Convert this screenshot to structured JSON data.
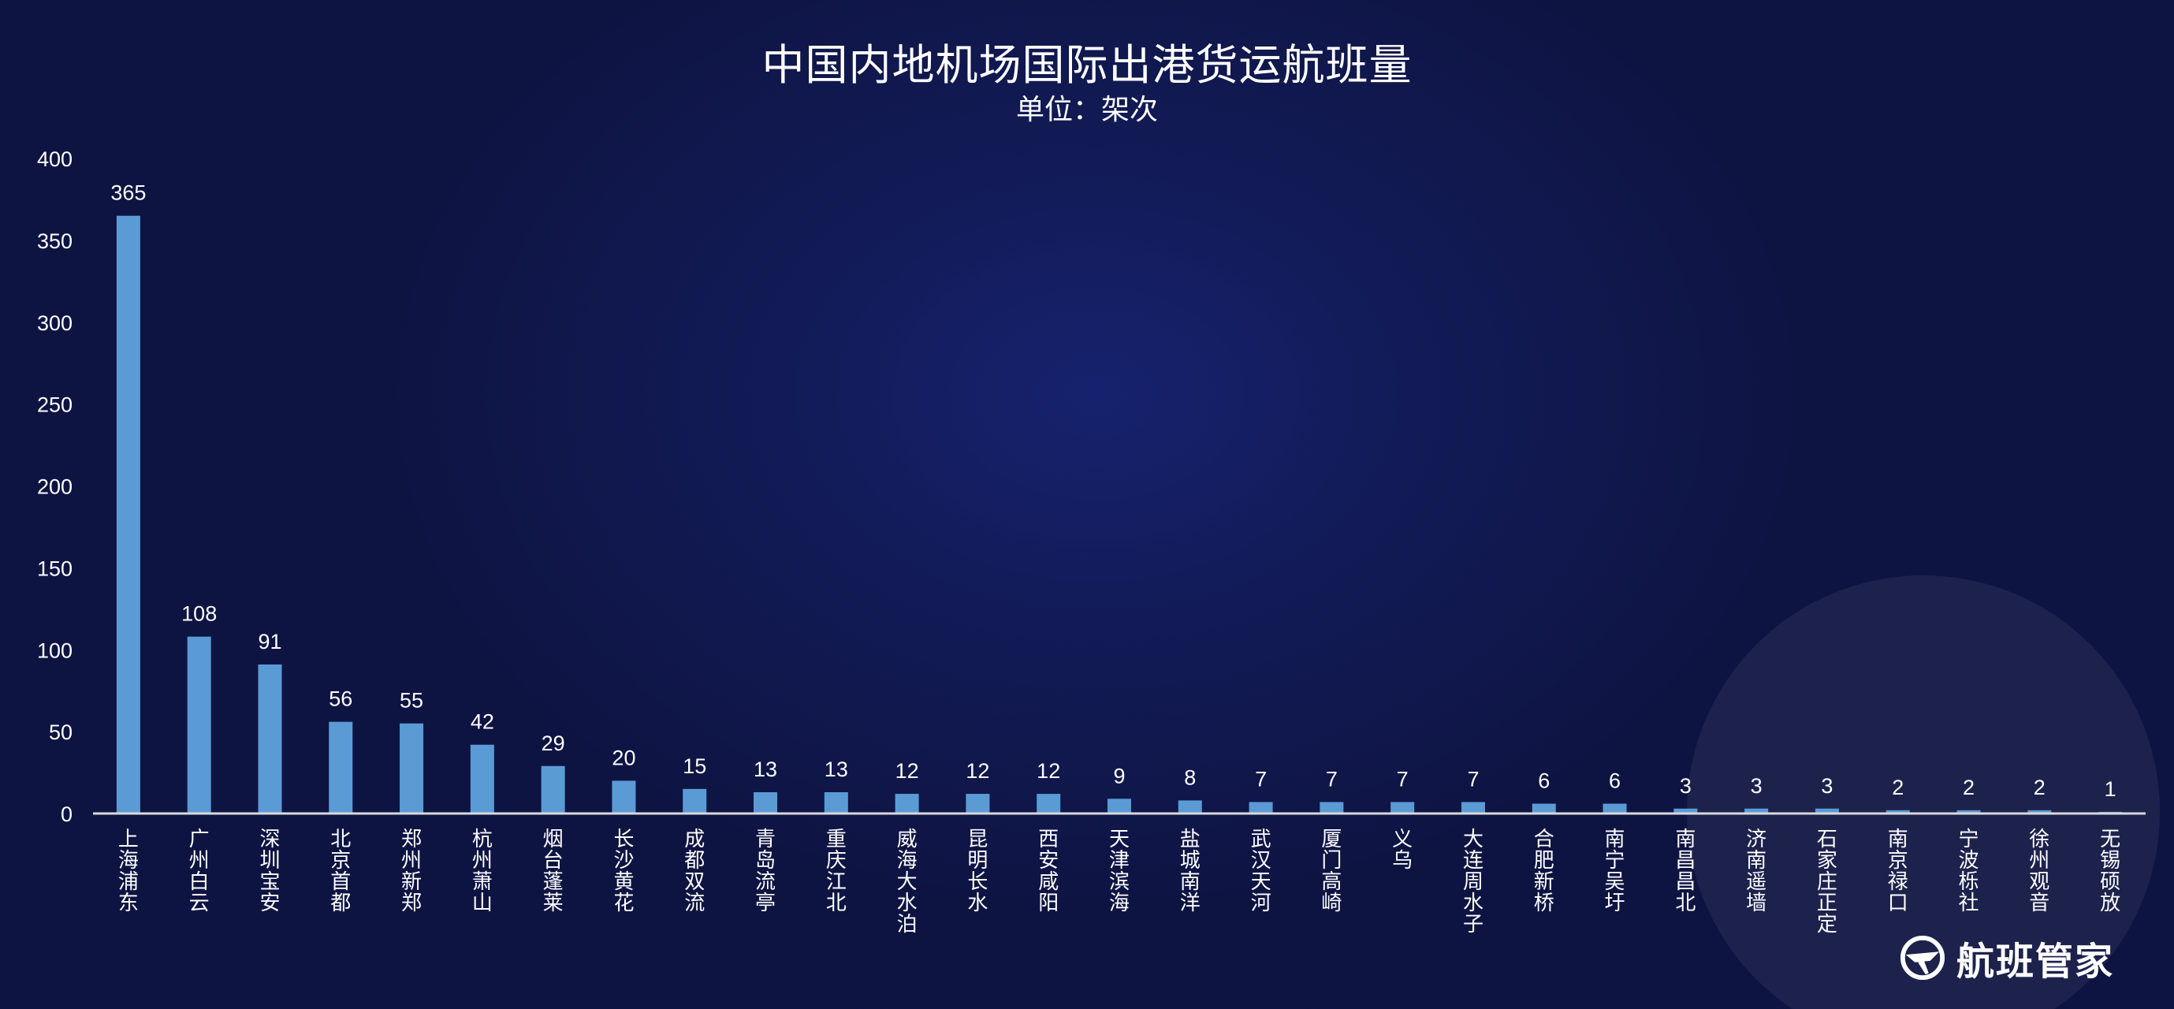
{
  "brand": {
    "name": "航班管家",
    "logo_icon": "plane-globe-logo-icon"
  },
  "chart_data": {
    "type": "bar",
    "title": "中国内地机场国际出港货运航班量",
    "subtitle": "单位：架次",
    "xlabel": "",
    "ylabel": "",
    "ylim": [
      0,
      400
    ],
    "yticks": [
      0,
      50,
      100,
      150,
      200,
      250,
      300,
      350,
      400
    ],
    "grid": false,
    "legend": "none",
    "bar_color": "#5b9bd5",
    "categories": [
      "上海浦东",
      "广州白云",
      "深圳宝安",
      "北京首都",
      "郑州新郑",
      "杭州萧山",
      "烟台蓬莱",
      "长沙黄花",
      "成都双流",
      "青岛流亭",
      "重庆江北",
      "威海大水泊",
      "昆明长水",
      "西安咸阳",
      "天津滨海",
      "盐城南洋",
      "武汉天河",
      "厦门高崎",
      "义乌",
      "大连周水子",
      "合肥新桥",
      "南宁吴圩",
      "南昌昌北",
      "济南遥墙",
      "石家庄正定",
      "南京禄口",
      "宁波栎社",
      "徐州观音",
      "无锡硕放"
    ],
    "values": [
      365,
      108,
      91,
      56,
      55,
      42,
      29,
      20,
      15,
      13,
      13,
      12,
      12,
      12,
      9,
      8,
      7,
      7,
      7,
      7,
      6,
      6,
      3,
      3,
      3,
      2,
      2,
      2,
      1
    ]
  }
}
